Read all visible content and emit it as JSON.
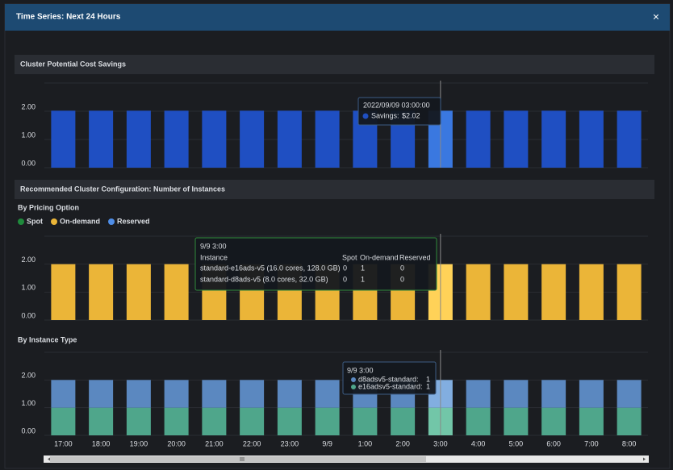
{
  "modal": {
    "title": "Time Series: Next 24 Hours",
    "close": "×"
  },
  "sections": [
    {
      "title": "Cluster Potential Cost Savings"
    },
    {
      "title": "Recommended Cluster Configuration: Number of Instances"
    }
  ],
  "chart_data": [
    {
      "type": "bar",
      "stacked": true,
      "series": [
        {
          "name": "Savings",
          "color": "#1f4fc2",
          "hover_color": "#3a78e0",
          "values": [
            2.02,
            2.02,
            2.02,
            2.02,
            2.02,
            2.02,
            2.02,
            2.02,
            2.02,
            2.02,
            2.02,
            2.02,
            2.02,
            2.02,
            2.02,
            2.02
          ]
        }
      ],
      "ylim": [
        0,
        3
      ],
      "yticks": [
        {
          "value": 0,
          "label": "0.00"
        },
        {
          "value": 1,
          "label": "1.00"
        },
        {
          "value": 2,
          "label": "2.00"
        }
      ],
      "tooltip": {
        "title": "2022/09/09 03:00:00",
        "value_label": "$2.02"
      }
    },
    {
      "type": "bar",
      "stacked": true,
      "title": "By Pricing Option",
      "legend": true,
      "series": [
        {
          "name": "Spot",
          "color": "#1f8a3c",
          "hover_color": "#2fae52",
          "values": [
            0,
            0,
            0,
            0,
            0,
            0,
            0,
            0,
            0,
            0,
            0,
            0,
            0,
            0,
            0,
            0
          ]
        },
        {
          "name": "On-demand",
          "color": "#ebb538",
          "hover_color": "#ffd258",
          "values": [
            2,
            2,
            2,
            2,
            2,
            2,
            2,
            2,
            2,
            2,
            2,
            2,
            2,
            2,
            2,
            2
          ]
        },
        {
          "name": "Reserved",
          "color": "#4f8ee8",
          "hover_color": "#7aaaf0",
          "values": [
            0,
            0,
            0,
            0,
            0,
            0,
            0,
            0,
            0,
            0,
            0,
            0,
            0,
            0,
            0,
            0
          ]
        }
      ],
      "ylim": [
        0,
        3
      ],
      "yticks": [
        {
          "value": 0,
          "label": "0.00"
        },
        {
          "value": 1,
          "label": "1.00"
        },
        {
          "value": 2,
          "label": "2.00"
        }
      ],
      "tooltip": {
        "title": "9/9 3:00",
        "columns": [
          "Instance",
          "Spot",
          "On-demand",
          "Reserved"
        ],
        "rows": [
          [
            "standard-e16ads-v5 (16.0 cores, 128.0 GB)",
            0,
            1,
            0
          ],
          [
            "standard-d8ads-v5 (8.0 cores, 32.0 GB)",
            0,
            1,
            0
          ]
        ]
      }
    },
    {
      "type": "bar",
      "stacked": true,
      "title": "By Instance Type",
      "categories": [
        "17:00",
        "18:00",
        "19:00",
        "20:00",
        "21:00",
        "22:00",
        "23:00",
        "9/9",
        "1:00",
        "2:00",
        "3:00",
        "4:00",
        "5:00",
        "6:00",
        "7:00",
        "8:00"
      ],
      "series": [
        {
          "name": "e16adsv5-standard",
          "color": "#4fa68b",
          "hover_color": "#72c6a8",
          "values": [
            1,
            1,
            1,
            1,
            1,
            1,
            1,
            1,
            1,
            1,
            1,
            1,
            1,
            1,
            1,
            1
          ]
        },
        {
          "name": "d8adsv5-standard",
          "color": "#5b88c0",
          "hover_color": "#82aee0",
          "values": [
            1,
            1,
            1,
            1,
            1,
            1,
            1,
            1,
            1,
            1,
            1,
            1,
            1,
            1,
            1,
            1
          ]
        }
      ],
      "ylim": [
        0,
        3
      ],
      "yticks": [
        {
          "value": 0,
          "label": "0.00"
        },
        {
          "value": 1,
          "label": "1.00"
        },
        {
          "value": 2,
          "label": "2.00"
        }
      ],
      "tooltip": {
        "title": "9/9 3:00"
      }
    }
  ]
}
